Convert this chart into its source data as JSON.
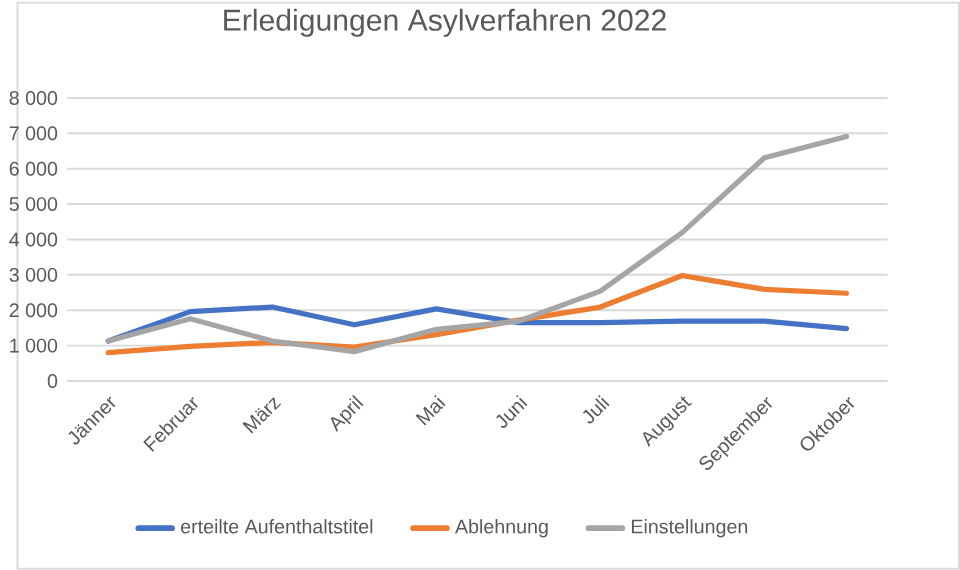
{
  "chart_data": {
    "type": "line",
    "title": "Erledigungen Asylverfahren 2022",
    "categories": [
      "Jänner",
      "Februar",
      "März",
      "April",
      "Mai",
      "Juni",
      "Juli",
      "August",
      "September",
      "Oktober"
    ],
    "series": [
      {
        "name": "erteilte Aufenthaltstitel",
        "color": "#4472c4",
        "values": [
          1130,
          1960,
          2090,
          1590,
          2040,
          1650,
          1650,
          1690,
          1690,
          1480
        ]
      },
      {
        "name": "Ablehnung",
        "color": "#ed7d31",
        "values": [
          800,
          980,
          1090,
          960,
          1310,
          1720,
          2090,
          2980,
          2590,
          2480
        ]
      },
      {
        "name": "Einstellungen",
        "color": "#a5a5a5",
        "values": [
          1130,
          1760,
          1130,
          830,
          1460,
          1690,
          2540,
          4200,
          6310,
          6910
        ]
      }
    ],
    "ylim": [
      0,
      8000
    ],
    "yticks": [
      0,
      {
        "value": 1000,
        "label": "1 000"
      },
      {
        "value": 2000,
        "label": "2 000"
      },
      {
        "value": 3000,
        "label": "3 000"
      },
      {
        "value": 4000,
        "label": "4 000"
      },
      {
        "value": 5000,
        "label": "5 000"
      },
      {
        "value": 6000,
        "label": "6 000"
      },
      {
        "value": 7000,
        "label": "7 000"
      },
      {
        "value": 8000,
        "label": "8 000"
      }
    ],
    "grid": "y",
    "legend": "bottom",
    "marker": "none",
    "line_style": "solid"
  }
}
